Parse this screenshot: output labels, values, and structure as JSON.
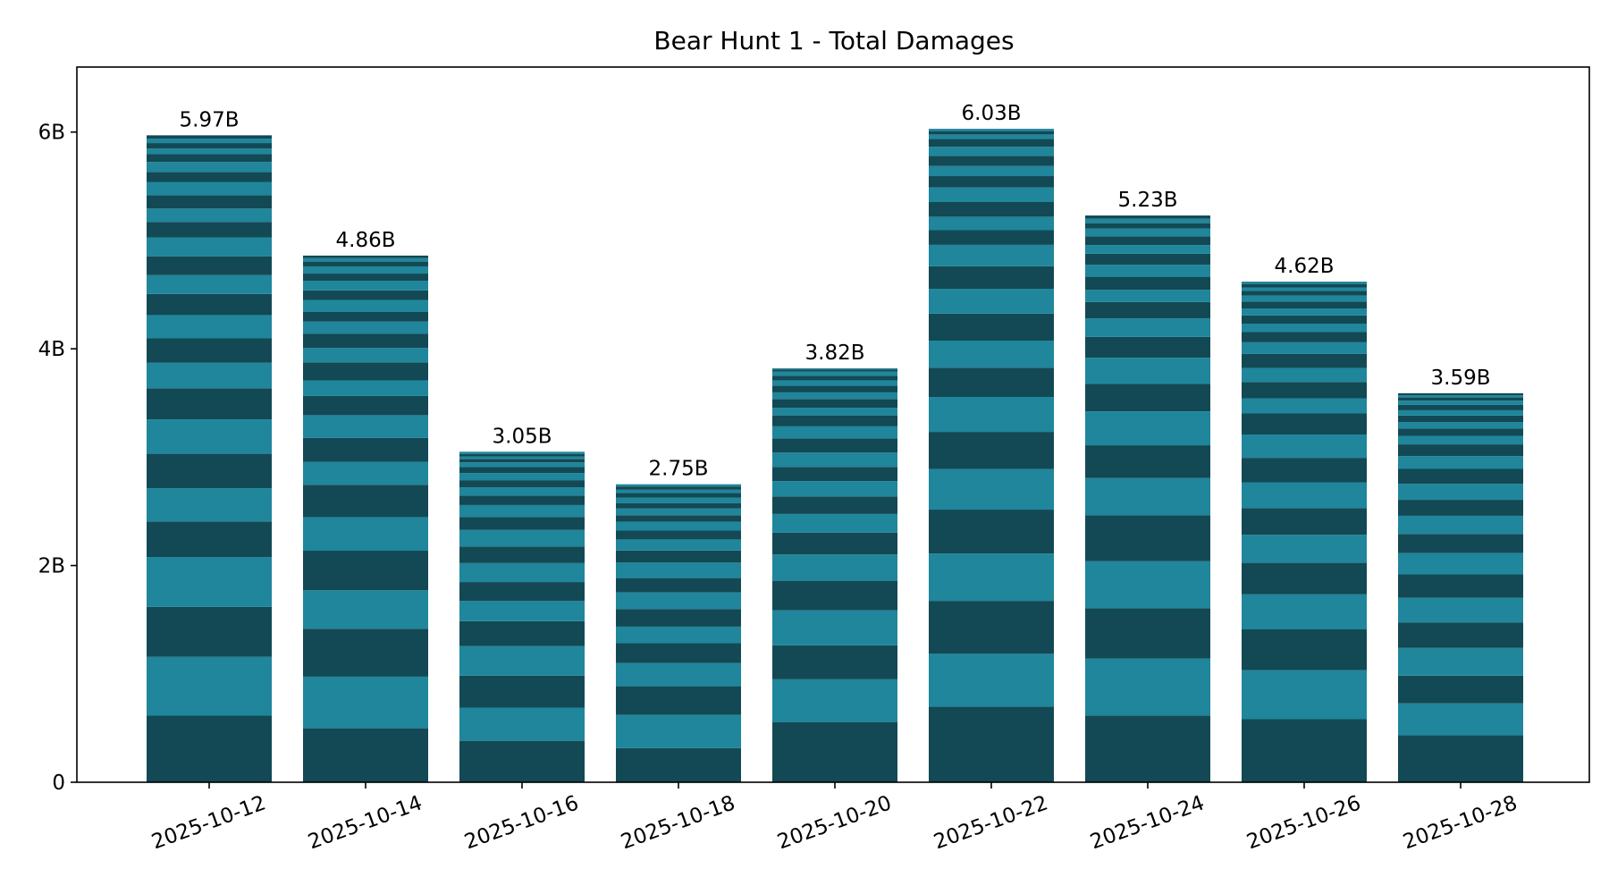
{
  "chart_data": {
    "type": "bar",
    "stacked": true,
    "title": "Bear Hunt 1 - Total Damages",
    "xlabel": "",
    "ylabel": "",
    "categories": [
      "2025-10-12",
      "2025-10-14",
      "2025-10-16",
      "2025-10-18",
      "2025-10-20",
      "2025-10-22",
      "2025-10-24",
      "2025-10-26",
      "2025-10-28"
    ],
    "totals": [
      5.97,
      4.86,
      3.05,
      2.75,
      3.82,
      6.03,
      5.23,
      4.62,
      3.59
    ],
    "total_labels": [
      "5.97B",
      "4.86B",
      "3.05B",
      "2.75B",
      "3.82B",
      "6.03B",
      "5.23B",
      "4.62B",
      "3.59B"
    ],
    "segments": [
      [
        0.6,
        0.53,
        0.45,
        0.45,
        0.32,
        0.3,
        0.31,
        0.31,
        0.28,
        0.23,
        0.22,
        0.21,
        0.19,
        0.17,
        0.17,
        0.17,
        0.14,
        0.12,
        0.12,
        0.12,
        0.09,
        0.09,
        0.07,
        0.05,
        0.05,
        0.04,
        0.03
      ],
      [
        0.45,
        0.43,
        0.4,
        0.32,
        0.33,
        0.28,
        0.27,
        0.19,
        0.2,
        0.19,
        0.16,
        0.13,
        0.15,
        0.12,
        0.12,
        0.1,
        0.08,
        0.1,
        0.08,
        0.08,
        0.06,
        0.06,
        0.04,
        0.03,
        0.02
      ],
      [
        0.35,
        0.28,
        0.27,
        0.25,
        0.21,
        0.17,
        0.16,
        0.16,
        0.14,
        0.14,
        0.11,
        0.1,
        0.08,
        0.07,
        0.06,
        0.06,
        0.05,
        0.04,
        0.03,
        0.02,
        0.02,
        0.02
      ],
      [
        0.31,
        0.3,
        0.26,
        0.21,
        0.18,
        0.15,
        0.16,
        0.15,
        0.13,
        0.14,
        0.11,
        0.1,
        0.08,
        0.08,
        0.06,
        0.06,
        0.05,
        0.05,
        0.04,
        0.03,
        0.03,
        0.02
      ],
      [
        0.55,
        0.39,
        0.31,
        0.32,
        0.27,
        0.24,
        0.2,
        0.17,
        0.16,
        0.14,
        0.13,
        0.13,
        0.13,
        0.11,
        0.1,
        0.07,
        0.08,
        0.06,
        0.06,
        0.05,
        0.04,
        0.04,
        0.02,
        0.01
      ],
      [
        0.67,
        0.47,
        0.47,
        0.42,
        0.39,
        0.36,
        0.33,
        0.31,
        0.26,
        0.24,
        0.24,
        0.22,
        0.2,
        0.19,
        0.13,
        0.12,
        0.13,
        0.13,
        0.1,
        0.09,
        0.09,
        0.08,
        0.07,
        0.04,
        0.03,
        0.02
      ],
      [
        0.61,
        0.52,
        0.46,
        0.43,
        0.42,
        0.34,
        0.3,
        0.31,
        0.25,
        0.24,
        0.19,
        0.17,
        0.15,
        0.11,
        0.12,
        0.11,
        0.1,
        0.08,
        0.08,
        0.07,
        0.05,
        0.04,
        0.03
      ],
      [
        0.54,
        0.42,
        0.35,
        0.3,
        0.27,
        0.24,
        0.23,
        0.22,
        0.21,
        0.2,
        0.18,
        0.13,
        0.14,
        0.12,
        0.12,
        0.1,
        0.09,
        0.07,
        0.07,
        0.06,
        0.06,
        0.05,
        0.04,
        0.03,
        0.03,
        0.02
      ],
      [
        0.44,
        0.3,
        0.26,
        0.26,
        0.24,
        0.23,
        0.22,
        0.2,
        0.18,
        0.17,
        0.15,
        0.15,
        0.14,
        0.12,
        0.11,
        0.08,
        0.07,
        0.06,
        0.06,
        0.05,
        0.05,
        0.04,
        0.03,
        0.02,
        0.02
      ]
    ],
    "y_unit": "B",
    "ylim": [
      0,
      6.6
    ],
    "y_ticks": [
      0,
      2,
      4,
      6
    ],
    "y_tick_labels": [
      "0",
      "2B",
      "4B",
      "6B"
    ],
    "grid": false,
    "legend": "none",
    "colors": {
      "dark": "#124955",
      "light": "#1F869C",
      "axis": "#000000"
    }
  }
}
